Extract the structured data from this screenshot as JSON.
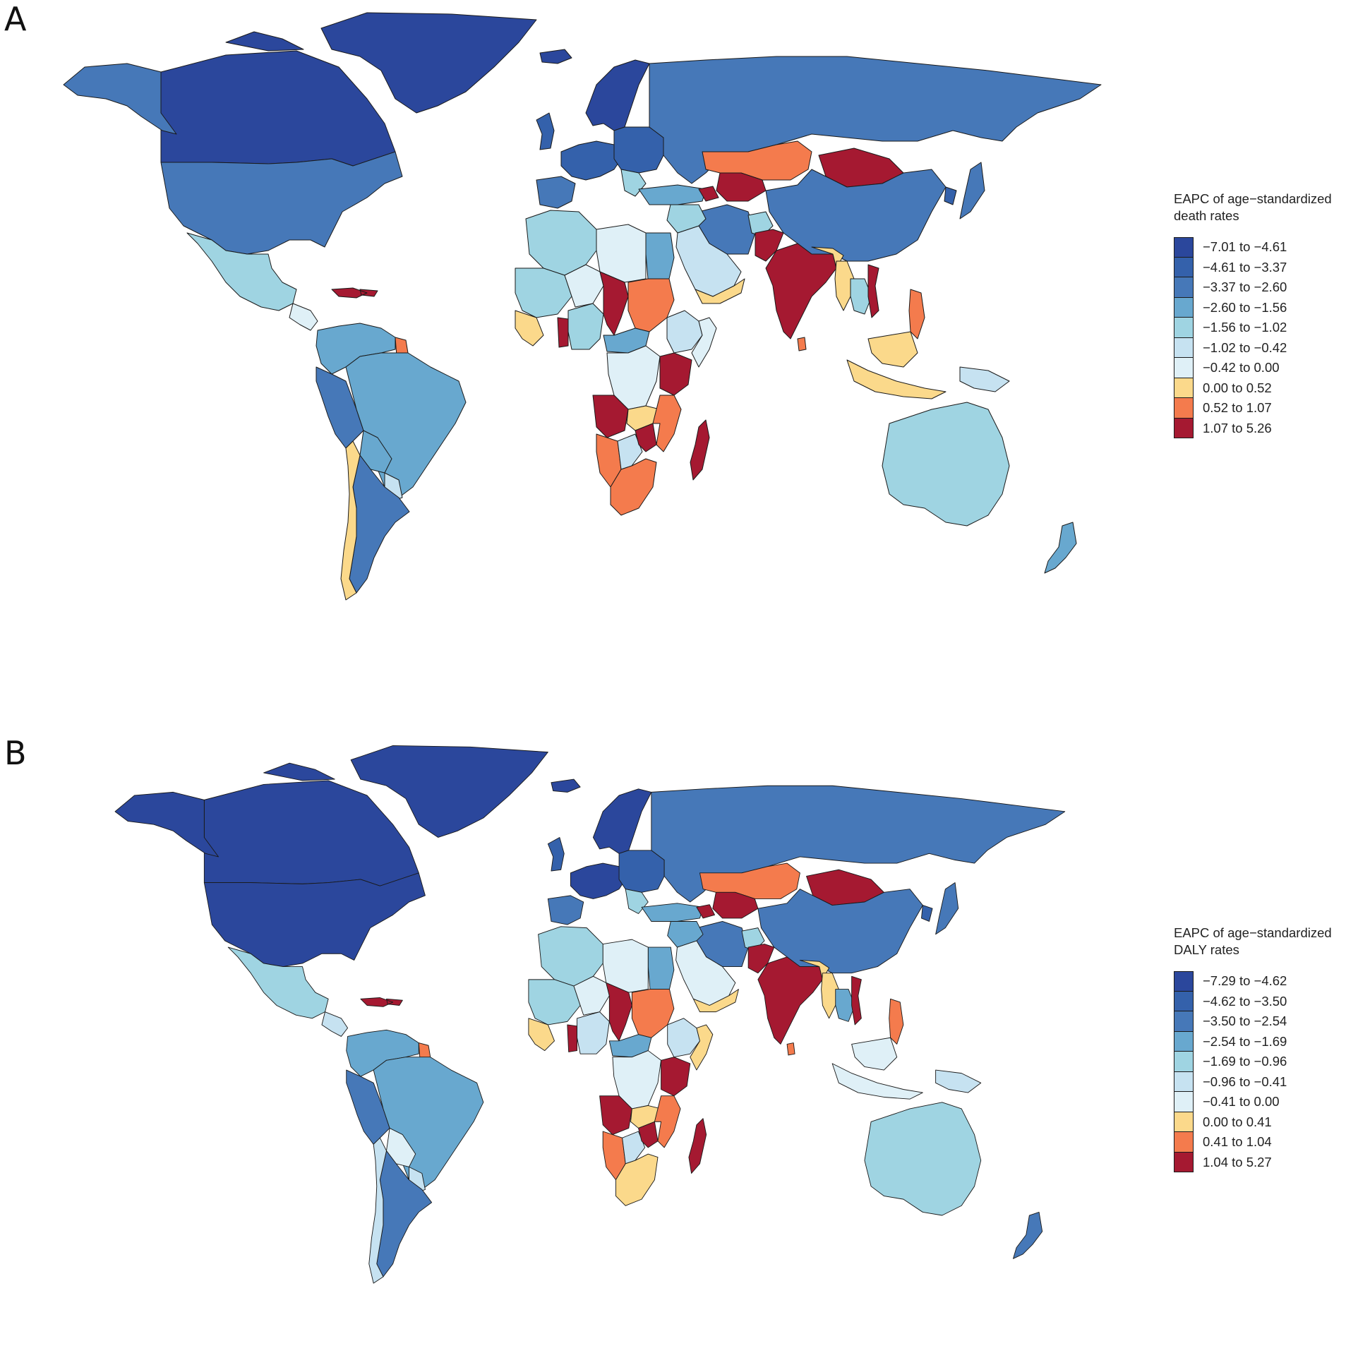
{
  "panels": [
    {
      "letter": "A",
      "legend_title_line1": "EAPC of age−standardized",
      "legend_title_line2": "death rates",
      "legend": [
        {
          "label": "−7.01 to −4.61",
          "color": "#2b479c"
        },
        {
          "label": "−4.61 to −3.37",
          "color": "#3461ab"
        },
        {
          "label": "−3.37 to −2.60",
          "color": "#4678b8"
        },
        {
          "label": "−2.60 to −1.56",
          "color": "#68a8cf"
        },
        {
          "label": "−1.56 to −1.02",
          "color": "#9fd4e2"
        },
        {
          "label": "−1.02 to −0.42",
          "color": "#c6e2f1"
        },
        {
          "label": "−0.42 to 0.00",
          "color": "#dff0f7"
        },
        {
          "label": "0.00 to 0.52",
          "color": "#fbd98b"
        },
        {
          "label": "0.52 to 1.07",
          "color": "#f47b4d"
        },
        {
          "label": "1.07 to 5.26",
          "color": "#a51931"
        }
      ]
    },
    {
      "letter": "B",
      "legend_title_line1": "EAPC of age−standardized",
      "legend_title_line2": "DALY rates",
      "legend": [
        {
          "label": "−7.29 to −4.62",
          "color": "#2b479c"
        },
        {
          "label": "−4.62 to −3.50",
          "color": "#3461ab"
        },
        {
          "label": "−3.50 to −2.54",
          "color": "#4678b8"
        },
        {
          "label": "−2.54 to −1.69",
          "color": "#68a8cf"
        },
        {
          "label": "−1.69 to −0.96",
          "color": "#9fd4e2"
        },
        {
          "label": "−0.96 to −0.41",
          "color": "#c6e2f1"
        },
        {
          "label": "−0.41 to 0.00",
          "color": "#dff0f7"
        },
        {
          "label": "0.00 to 0.41",
          "color": "#fbd98b"
        },
        {
          "label": "0.41 to 1.04",
          "color": "#f47b4d"
        },
        {
          "label": "1.04 to 5.27",
          "color": "#a51931"
        }
      ]
    }
  ],
  "map": {
    "outline_color": "#1a1a1a",
    "regions": [
      {
        "name": "greenland",
        "a": 0,
        "b": 0
      },
      {
        "name": "canada",
        "a": 0,
        "b": 0
      },
      {
        "name": "alaska",
        "a": 2,
        "b": 0
      },
      {
        "name": "usa",
        "a": 2,
        "b": 0
      },
      {
        "name": "mexico",
        "a": 4,
        "b": 4
      },
      {
        "name": "central-america",
        "a": 6,
        "b": 5
      },
      {
        "name": "caribbean",
        "a": 9,
        "b": 9
      },
      {
        "name": "colombia-venezuela",
        "a": 3,
        "b": 3
      },
      {
        "name": "guyana",
        "a": 8,
        "b": 8
      },
      {
        "name": "peru-ecuador",
        "a": 2,
        "b": 2
      },
      {
        "name": "brazil",
        "a": 3,
        "b": 3
      },
      {
        "name": "bolivia",
        "a": 3,
        "b": 6
      },
      {
        "name": "paraguay",
        "a": 5,
        "b": 5
      },
      {
        "name": "argentina",
        "a": 2,
        "b": 2
      },
      {
        "name": "chile",
        "a": 7,
        "b": 5
      },
      {
        "name": "iceland",
        "a": 0,
        "b": 0
      },
      {
        "name": "uk-ireland",
        "a": 1,
        "b": 1
      },
      {
        "name": "scandinavia",
        "a": 0,
        "b": 0
      },
      {
        "name": "western-europe",
        "a": 1,
        "b": 0
      },
      {
        "name": "iberia",
        "a": 2,
        "b": 2
      },
      {
        "name": "eastern-europe",
        "a": 1,
        "b": 1
      },
      {
        "name": "balkans",
        "a": 4,
        "b": 4
      },
      {
        "name": "turkey",
        "a": 3,
        "b": 3
      },
      {
        "name": "russia",
        "a": 2,
        "b": 2
      },
      {
        "name": "kazakhstan",
        "a": 8,
        "b": 8
      },
      {
        "name": "central-asia",
        "a": 9,
        "b": 9
      },
      {
        "name": "caucasus",
        "a": 9,
        "b": 9
      },
      {
        "name": "mongolia",
        "a": 9,
        "b": 9
      },
      {
        "name": "china",
        "a": 2,
        "b": 2
      },
      {
        "name": "korea",
        "a": 1,
        "b": 1
      },
      {
        "name": "japan",
        "a": 2,
        "b": 2
      },
      {
        "name": "iran",
        "a": 2,
        "b": 2
      },
      {
        "name": "afghanistan",
        "a": 4,
        "b": 4
      },
      {
        "name": "pakistan",
        "a": 9,
        "b": 9
      },
      {
        "name": "india",
        "a": 9,
        "b": 9
      },
      {
        "name": "nepal-bangladesh",
        "a": 7,
        "b": 7
      },
      {
        "name": "sri-lanka",
        "a": 8,
        "b": 8
      },
      {
        "name": "myanmar",
        "a": 7,
        "b": 7
      },
      {
        "name": "thailand-laos",
        "a": 4,
        "b": 3
      },
      {
        "name": "vietnam",
        "a": 9,
        "b": 9
      },
      {
        "name": "philippines",
        "a": 8,
        "b": 8
      },
      {
        "name": "malaysia-borneo",
        "a": 7,
        "b": 6
      },
      {
        "name": "indonesia",
        "a": 7,
        "b": 6
      },
      {
        "name": "papua",
        "a": 5,
        "b": 5
      },
      {
        "name": "australia",
        "a": 4,
        "b": 4
      },
      {
        "name": "new-zealand",
        "a": 3,
        "b": 2
      },
      {
        "name": "arabia",
        "a": 5,
        "b": 6
      },
      {
        "name": "yemen-oman",
        "a": 7,
        "b": 7
      },
      {
        "name": "iraq-syria",
        "a": 4,
        "b": 3
      },
      {
        "name": "egypt",
        "a": 3,
        "b": 3
      },
      {
        "name": "libya",
        "a": 6,
        "b": 6
      },
      {
        "name": "maghreb",
        "a": 4,
        "b": 4
      },
      {
        "name": "mauritania-mali",
        "a": 4,
        "b": 4
      },
      {
        "name": "west-africa-coast",
        "a": 7,
        "b": 7
      },
      {
        "name": "ghana",
        "a": 9,
        "b": 9
      },
      {
        "name": "niger",
        "a": 6,
        "b": 6
      },
      {
        "name": "nigeria",
        "a": 4,
        "b": 5
      },
      {
        "name": "chad",
        "a": 9,
        "b": 9
      },
      {
        "name": "sudan",
        "a": 8,
        "b": 8
      },
      {
        "name": "ethiopia",
        "a": 5,
        "b": 5
      },
      {
        "name": "somalia",
        "a": 6,
        "b": 7
      },
      {
        "name": "central-africa",
        "a": 3,
        "b": 3
      },
      {
        "name": "drc",
        "a": 6,
        "b": 6
      },
      {
        "name": "tanzania",
        "a": 9,
        "b": 9
      },
      {
        "name": "angola",
        "a": 9,
        "b": 9
      },
      {
        "name": "zambia",
        "a": 7,
        "b": 7
      },
      {
        "name": "mozambique",
        "a": 8,
        "b": 8
      },
      {
        "name": "namibia",
        "a": 8,
        "b": 8
      },
      {
        "name": "botswana",
        "a": 5,
        "b": 5
      },
      {
        "name": "zimbabwe",
        "a": 9,
        "b": 9
      },
      {
        "name": "south-africa",
        "a": 8,
        "b": 7
      },
      {
        "name": "madagascar",
        "a": 9,
        "b": 9
      }
    ]
  }
}
